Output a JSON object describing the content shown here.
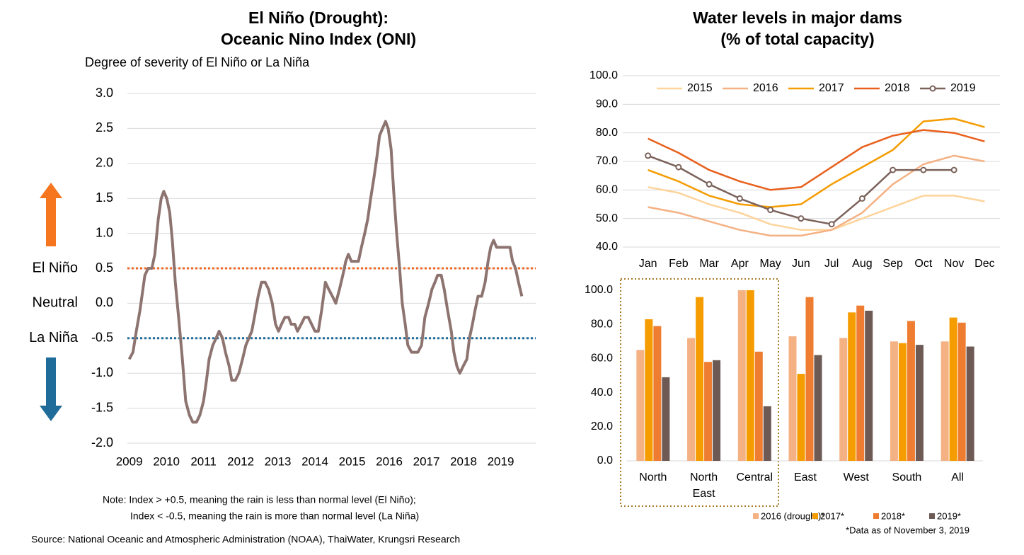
{
  "chart_data": [
    {
      "type": "line",
      "title": [
        "El Niño (Drought):",
        "Oceanic Nino Index (ONI)"
      ],
      "y_label": "Degree of severity of El Niño or La Niña",
      "color": "#8d7470",
      "xlim": [
        2008.95,
        2020
      ],
      "xticks": [
        2009,
        2010,
        2011,
        2012,
        2013,
        2014,
        2015,
        2016,
        2017,
        2018,
        2019
      ],
      "ylim": [
        -2,
        3
      ],
      "yticks": [
        {
          "value": -2,
          "label": "-2.0"
        },
        {
          "value": -1.5,
          "label": "-1.5"
        },
        {
          "value": -1,
          "label": "-1.0"
        },
        {
          "value": -0.5,
          "label": "-0.5"
        },
        {
          "value": 0,
          "label": "0.0"
        },
        {
          "value": 0.5,
          "label": "0.5"
        },
        {
          "value": 1,
          "label": "1.0"
        },
        {
          "value": 1.5,
          "label": "1.5"
        },
        {
          "value": 2,
          "label": "2.0"
        },
        {
          "value": 2.5,
          "label": "2.5"
        },
        {
          "value": 3,
          "label": "3.0"
        }
      ],
      "grid": true,
      "reference_lines": [
        {
          "value": 0.5,
          "label": "El Niño",
          "color": "#f26722",
          "line": true
        },
        {
          "value": 0,
          "label": "Neutral",
          "color": "#595959",
          "line": false
        },
        {
          "value": -0.5,
          "label": "La Niña",
          "color": "#1f6b99",
          "line": true
        }
      ],
      "x": [
        2009.0,
        2009.1,
        2009.19,
        2009.29,
        2009.42,
        2009.51,
        2009.61,
        2009.69,
        2009.78,
        2009.86,
        2009.93,
        2010.01,
        2010.09,
        2010.16,
        2010.24,
        2010.33,
        2010.43,
        2010.52,
        2010.62,
        2010.71,
        2010.81,
        2010.9,
        2011.0,
        2011.08,
        2011.15,
        2011.25,
        2011.34,
        2011.42,
        2011.51,
        2011.59,
        2011.69,
        2011.76,
        2011.86,
        2011.95,
        2012.05,
        2012.14,
        2012.22,
        2012.3,
        2012.37,
        2012.47,
        2012.56,
        2012.66,
        2012.75,
        2012.85,
        2012.94,
        2013.02,
        2013.1,
        2013.19,
        2013.29,
        2013.36,
        2013.46,
        2013.53,
        2013.63,
        2013.72,
        2013.82,
        2013.91,
        2014.0,
        2014.09,
        2014.18,
        2014.28,
        2014.37,
        2014.47,
        2014.56,
        2014.66,
        2014.75,
        2014.83,
        2014.9,
        2014.98,
        2015.08,
        2015.17,
        2015.25,
        2015.34,
        2015.42,
        2015.5,
        2015.59,
        2015.67,
        2015.74,
        2015.82,
        2015.9,
        2015.97,
        2016.05,
        2016.12,
        2016.2,
        2016.28,
        2016.35,
        2016.43,
        2016.5,
        2016.6,
        2016.68,
        2016.77,
        2016.87,
        2016.96,
        2017.06,
        2017.15,
        2017.23,
        2017.3,
        2017.4,
        2017.48,
        2017.57,
        2017.67,
        2017.74,
        2017.82,
        2017.9,
        2017.99,
        2018.09,
        2018.16,
        2018.24,
        2018.31,
        2018.39,
        2018.49,
        2018.58,
        2018.66,
        2018.73,
        2018.81,
        2018.89,
        2018.98,
        2019.08,
        2019.17,
        2019.25,
        2019.32,
        2019.4,
        2019.48,
        2019.57
      ],
      "values": [
        -0.8,
        -0.7,
        -0.4,
        -0.1,
        0.4,
        0.5,
        0.5,
        0.7,
        1.2,
        1.5,
        1.6,
        1.5,
        1.3,
        0.9,
        0.3,
        -0.2,
        -0.8,
        -1.4,
        -1.6,
        -1.7,
        -1.7,
        -1.6,
        -1.4,
        -1.1,
        -0.8,
        -0.6,
        -0.5,
        -0.4,
        -0.5,
        -0.7,
        -0.9,
        -1.1,
        -1.1,
        -1.0,
        -0.8,
        -0.6,
        -0.5,
        -0.4,
        -0.2,
        0.1,
        0.3,
        0.3,
        0.2,
        0.0,
        -0.3,
        -0.4,
        -0.3,
        -0.2,
        -0.2,
        -0.3,
        -0.3,
        -0.4,
        -0.3,
        -0.2,
        -0.2,
        -0.3,
        -0.4,
        -0.4,
        -0.1,
        0.3,
        0.2,
        0.1,
        0.0,
        0.2,
        0.4,
        0.6,
        0.7,
        0.6,
        0.6,
        0.6,
        0.8,
        1.0,
        1.2,
        1.5,
        1.8,
        2.1,
        2.4,
        2.5,
        2.6,
        2.5,
        2.2,
        1.6,
        1.0,
        0.5,
        0.0,
        -0.3,
        -0.6,
        -0.7,
        -0.7,
        -0.7,
        -0.6,
        -0.2,
        0.0,
        0.2,
        0.3,
        0.4,
        0.4,
        0.2,
        -0.1,
        -0.4,
        -0.7,
        -0.9,
        -1.0,
        -0.9,
        -0.8,
        -0.5,
        -0.3,
        -0.1,
        0.1,
        0.1,
        0.3,
        0.6,
        0.8,
        0.9,
        0.8,
        0.8,
        0.8,
        0.8,
        0.8,
        0.6,
        0.5,
        0.3,
        0.1
      ]
    },
    {
      "type": "line",
      "title": [
        "Water levels in major dams",
        "(% of total capacity)"
      ],
      "categories": [
        "Jan",
        "Feb",
        "Mar",
        "Apr",
        "May",
        "Jun",
        "Jul",
        "Aug",
        "Sep",
        "Oct",
        "Nov",
        "Dec"
      ],
      "ylim": [
        40,
        100
      ],
      "yticks": [
        {
          "value": 40,
          "label": "40.0"
        },
        {
          "value": 50,
          "label": "50.0"
        },
        {
          "value": 60,
          "label": "60.0"
        },
        {
          "value": 70,
          "label": "70.0"
        },
        {
          "value": 80,
          "label": "80.0"
        },
        {
          "value": 90,
          "label": "90.0"
        },
        {
          "value": 100,
          "label": "100.0"
        }
      ],
      "grid": true,
      "legend": "top",
      "series": [
        {
          "name": "2015",
          "color": "#fdd49a",
          "marker": false,
          "values": [
            61,
            59,
            55,
            52,
            48,
            46,
            46,
            50,
            54,
            58,
            58,
            56
          ]
        },
        {
          "name": "2016",
          "color": "#f4b183",
          "marker": false,
          "values": [
            54,
            52,
            49,
            46,
            44,
            44,
            46,
            52,
            62,
            69,
            72,
            70
          ]
        },
        {
          "name": "2017",
          "color": "#f59c00",
          "marker": false,
          "values": [
            67,
            63,
            58,
            55,
            54,
            55,
            62,
            68,
            74,
            84,
            85,
            82
          ]
        },
        {
          "name": "2018",
          "color": "#e8601c",
          "marker": false,
          "values": [
            78,
            73,
            67,
            63,
            60,
            61,
            68,
            75,
            79,
            81,
            80,
            77
          ]
        },
        {
          "name": "2019",
          "color": "#7b625a",
          "marker": true,
          "values": [
            72,
            68,
            62,
            57,
            53,
            50,
            48,
            57,
            67,
            67,
            67,
            null
          ]
        }
      ]
    },
    {
      "type": "bar",
      "categories": [
        "North",
        "North East",
        "Central",
        "East",
        "West",
        "South",
        "All"
      ],
      "ylim": [
        0,
        100
      ],
      "yticks": [
        {
          "value": 0,
          "label": "0.0"
        },
        {
          "value": 20,
          "label": "20.0"
        },
        {
          "value": 40,
          "label": "40.0"
        },
        {
          "value": 60,
          "label": "60.0"
        },
        {
          "value": 80,
          "label": "80.0"
        },
        {
          "value": 100,
          "label": "100.0"
        }
      ],
      "grid": false,
      "legend": "bottom",
      "footnote": "*Data as of November 3, 2019",
      "series": [
        {
          "name": "2016 (drought)*",
          "color": "#f4b183",
          "values": [
            65,
            72,
            100,
            73,
            72,
            70,
            70
          ]
        },
        {
          "name": "2017*",
          "color": "#f59c00",
          "values": [
            83,
            96,
            100,
            51,
            87,
            69,
            84
          ]
        },
        {
          "name": "2018*",
          "color": "#ee7d31",
          "values": [
            79,
            58,
            64,
            96,
            91,
            82,
            81
          ]
        },
        {
          "name": "2019*",
          "color": "#6e5a55",
          "values": [
            49,
            59,
            32,
            62,
            88,
            68,
            67
          ]
        }
      ]
    }
  ],
  "notes": [
    "Note: Index > +0.5, meaning the rain is less than normal level (El Niño);",
    "Index < -0.5, meaning the rain is more than normal level (La Niña)"
  ],
  "source": "Source: National Oceanic and Atmospheric Administration (NOAA), ThaiWater, Krungsri Research"
}
